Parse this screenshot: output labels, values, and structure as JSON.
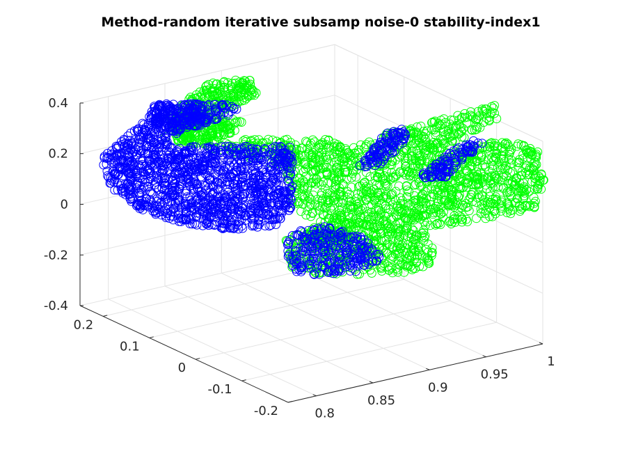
{
  "chart_data": {
    "type": "scatter",
    "title": "Method-random iterative subsamp noise-0 stability-index1",
    "projection": "3d",
    "grid": true,
    "marker": "circle-open",
    "axes": {
      "x": {
        "range": [
          0.775,
          1.0
        ],
        "ticks": [
          0.8,
          0.85,
          0.9,
          0.95,
          1
        ],
        "tick_labels": [
          "0.8",
          "0.85",
          "0.9",
          "0.95",
          "1"
        ]
      },
      "y": {
        "range": [
          -0.2,
          0.25
        ],
        "ticks": [
          -0.2,
          -0.1,
          0,
          0.1,
          0.2
        ],
        "tick_labels": [
          "-0.2",
          "-0.1",
          "0",
          "0.1",
          "0.2"
        ]
      },
      "z": {
        "range": [
          -0.4,
          0.4
        ],
        "ticks": [
          -0.4,
          -0.2,
          0,
          0.2,
          0.4
        ],
        "tick_labels": [
          "-0.4",
          "-0.2",
          "0",
          "0.2",
          "0.4"
        ]
      }
    },
    "series": [
      {
        "color": "#00ff00",
        "regions": [
          {
            "x": [
              0.88,
              0.98
            ],
            "y": [
              -0.02,
              0.06
            ],
            "z": [
              -0.02,
              0.18
            ]
          },
          {
            "x": [
              0.95,
              1.0
            ],
            "y": [
              -0.02,
              0.12
            ],
            "z": [
              0.0,
              0.2
            ]
          },
          {
            "x": [
              0.92,
              0.98
            ],
            "y": [
              0.08,
              0.18
            ],
            "z": [
              0.2,
              0.32
            ]
          },
          {
            "x": [
              0.8,
              0.86
            ],
            "y": [
              0.1,
              0.22
            ],
            "z": [
              0.28,
              0.42
            ]
          },
          {
            "x": [
              0.86,
              0.9
            ],
            "y": [
              -0.12,
              -0.02
            ],
            "z": [
              -0.25,
              -0.1
            ]
          }
        ]
      },
      {
        "color": "#0000ff",
        "regions": [
          {
            "x": [
              0.78,
              0.87
            ],
            "y": [
              0.05,
              0.22
            ],
            "z": [
              -0.05,
              0.22
            ]
          },
          {
            "x": [
              0.79,
              0.85
            ],
            "y": [
              0.05,
              0.15
            ],
            "z": [
              0.25,
              0.35
            ]
          },
          {
            "x": [
              0.9,
              0.94
            ],
            "y": [
              0.12,
              0.2
            ],
            "z": [
              0.22,
              0.3
            ]
          },
          {
            "x": [
              0.88,
              0.92
            ],
            "y": [
              -0.15,
              -0.05
            ],
            "z": [
              -0.3,
              -0.15
            ]
          }
        ]
      }
    ]
  }
}
